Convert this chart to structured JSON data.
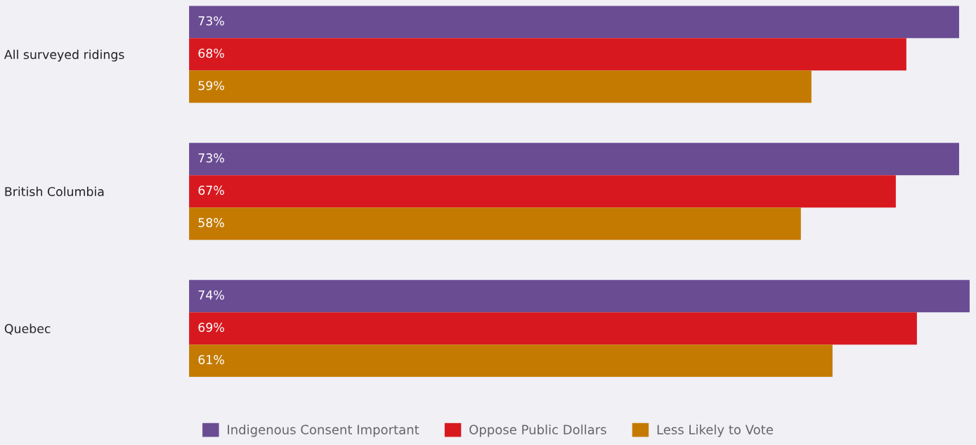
{
  "chart_data": {
    "type": "bar",
    "orientation": "horizontal",
    "categories": [
      "All surveyed ridings",
      "British Columbia",
      "Quebec"
    ],
    "series": [
      {
        "name": "Indigenous Consent Important",
        "color": "#6a4c93",
        "values": [
          73,
          73,
          74
        ],
        "value_labels": [
          "73%",
          "73%",
          "74%"
        ]
      },
      {
        "name": "Oppose Public Dollars",
        "color": "#d7191f",
        "values": [
          68,
          67,
          69
        ],
        "value_labels": [
          "68%",
          "67%",
          "69%"
        ]
      },
      {
        "name": "Less Likely to Vote",
        "color": "#c47a00",
        "values": [
          59,
          58,
          61
        ],
        "value_labels": [
          "59%",
          "58%",
          "61%"
        ]
      }
    ],
    "tick_labels": "y",
    "grid": false,
    "legend": "bottom"
  }
}
